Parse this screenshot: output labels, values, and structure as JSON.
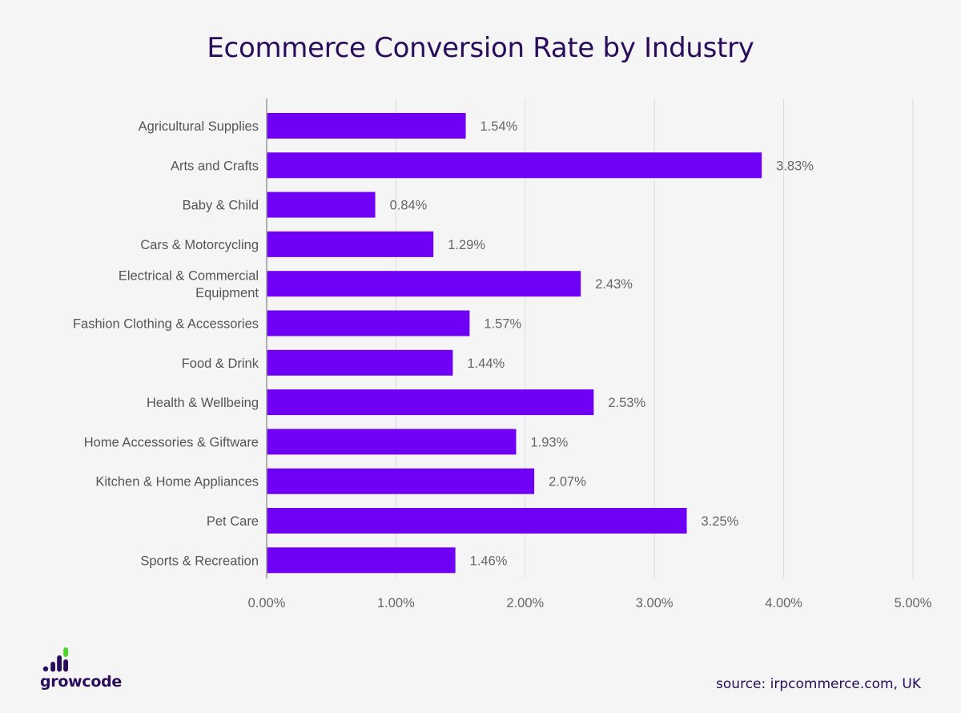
{
  "chart_data": {
    "type": "bar",
    "orientation": "horizontal",
    "title": "Ecommerce Conversion Rate by Industry",
    "categories": [
      "Agricultural Supplies",
      "Arts and Crafts",
      "Baby & Child",
      "Cars & Motorcycling",
      "Electrical & Commercial Equipment",
      "Fashion Clothing & Accessories",
      "Food & Drink",
      "Health & Wellbeing",
      "Home Accessories & Giftware",
      "Kitchen & Home Appliances",
      "Pet Care",
      "Sports & Recreation"
    ],
    "category_lines": [
      [
        "Agricultural Supplies"
      ],
      [
        "Arts and Crafts"
      ],
      [
        "Baby & Child"
      ],
      [
        "Cars & Motorcycling"
      ],
      [
        "Electrical & Commercial",
        "Equipment"
      ],
      [
        "Fashion Clothing & Accessories"
      ],
      [
        "Food & Drink"
      ],
      [
        "Health & Wellbeing"
      ],
      [
        "Home Accessories & Giftware"
      ],
      [
        "Kitchen & Home Appliances"
      ],
      [
        "Pet Care"
      ],
      [
        "Sports & Recreation"
      ]
    ],
    "values": [
      1.54,
      3.83,
      0.84,
      1.29,
      2.43,
      1.57,
      1.44,
      2.53,
      1.93,
      2.07,
      3.25,
      1.46
    ],
    "data_labels": [
      "1.54%",
      "3.83%",
      "0.84%",
      "1.29%",
      "2.43%",
      "1.57%",
      "1.44%",
      "2.53%",
      "1.93%",
      "2.07%",
      "3.25%",
      "1.46%"
    ],
    "xlim": [
      0,
      5
    ],
    "x_ticks": [
      0,
      1,
      2,
      3,
      4,
      5
    ],
    "x_tick_labels": [
      "0.00%",
      "1.00%",
      "2.00%",
      "3.00%",
      "4.00%",
      "5.00%"
    ],
    "grid": true,
    "xlabel": "",
    "ylabel": "",
    "bar_color": "#7000f5"
  },
  "brand": {
    "logo_text": "growcode",
    "logo_colors": {
      "dark": "#2a0c5c",
      "accent": "#4cd626"
    }
  },
  "footer": {
    "source": "source: irpcommerce.com, UK"
  },
  "colors": {
    "title": "#2a0c5c",
    "background": "#f5f5f5",
    "gridline": "#dcdcdc",
    "axis": "#999999"
  }
}
